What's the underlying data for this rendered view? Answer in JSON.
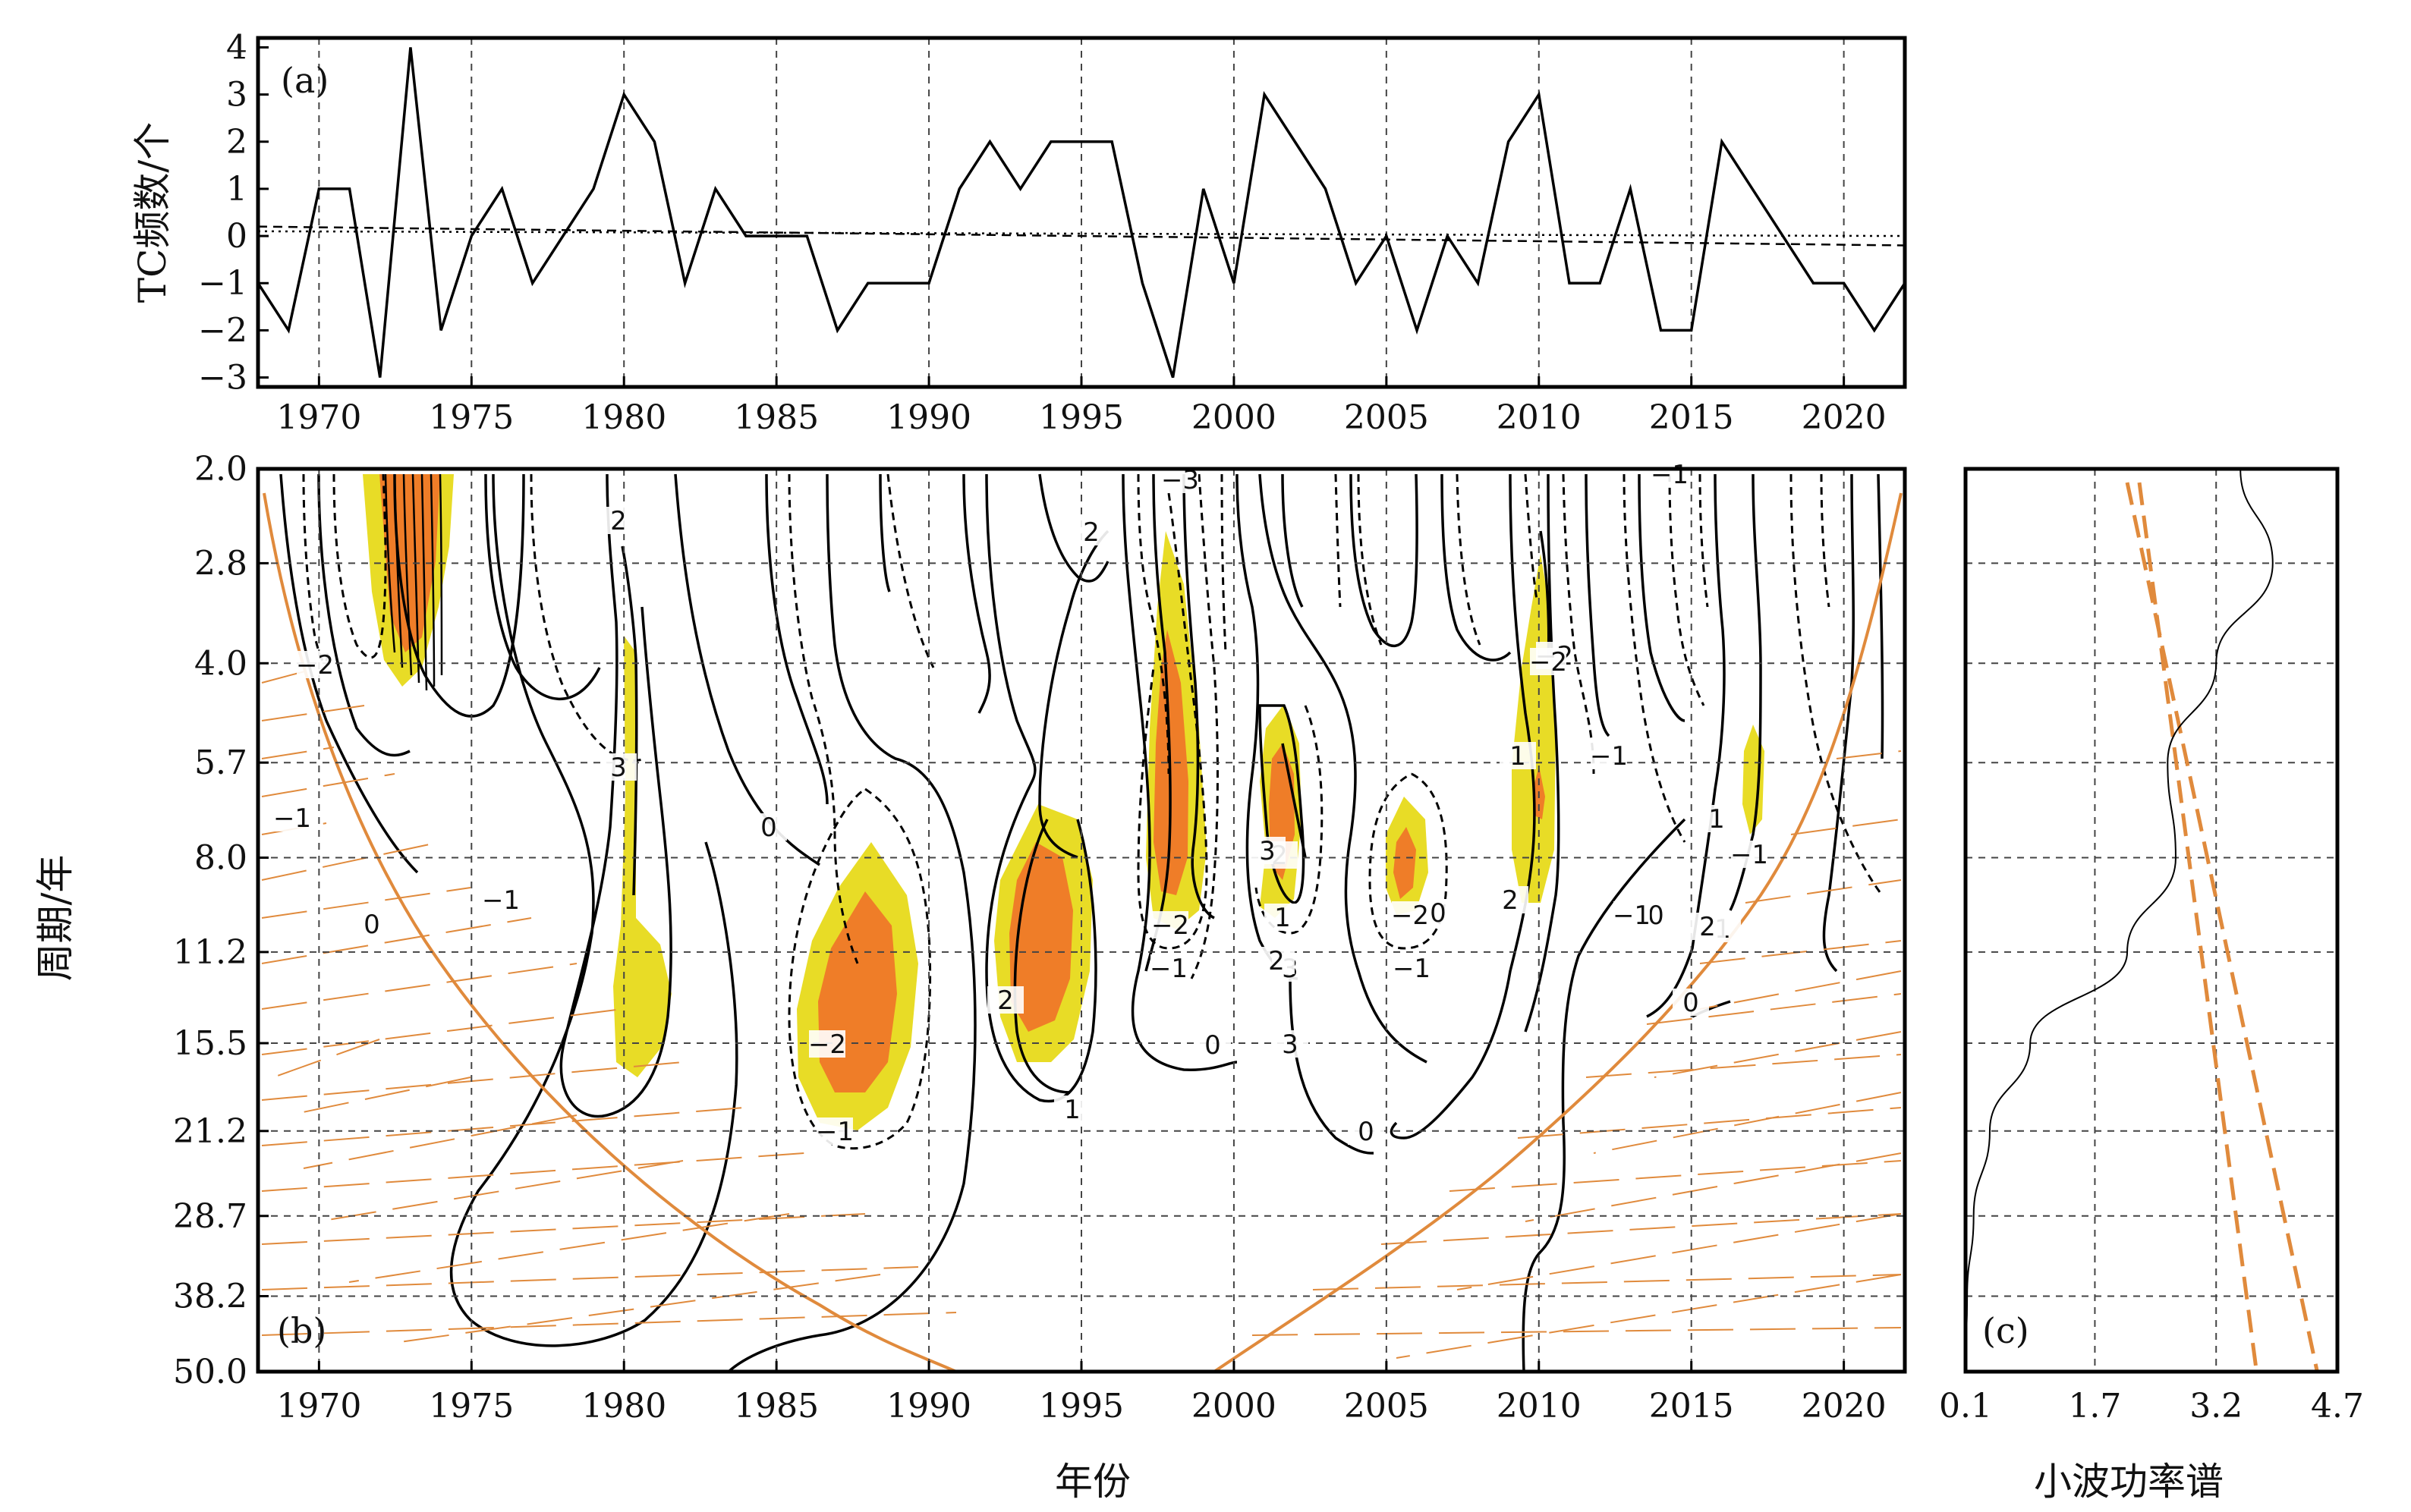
{
  "chart_data": [
    {
      "panel": "(a)",
      "type": "line",
      "ylabel": "TC频数/个",
      "xlim": [
        1968,
        2022
      ],
      "ylim": [
        -3.2,
        4.2
      ],
      "xticks": [
        "1970",
        "1975",
        "1980",
        "1985",
        "1990",
        "1995",
        "2000",
        "2005",
        "2010",
        "2015",
        "2020"
      ],
      "yticks": [
        "4",
        "3",
        "2",
        "1",
        "0",
        "−1",
        "−2",
        "−3"
      ],
      "x": [
        1968,
        1969,
        1970,
        1971,
        1972,
        1973,
        1974,
        1975,
        1976,
        1977,
        1978,
        1979,
        1980,
        1981,
        1982,
        1983,
        1984,
        1985,
        1986,
        1987,
        1988,
        1989,
        1990,
        1991,
        1992,
        1993,
        1994,
        1995,
        1996,
        1997,
        1998,
        1999,
        2000,
        2001,
        2002,
        2003,
        2004,
        2005,
        2006,
        2007,
        2008,
        2009,
        2010,
        2011,
        2012,
        2013,
        2014,
        2015,
        2016,
        2017,
        2018,
        2019,
        2020,
        2021,
        2022
      ],
      "values": [
        -1,
        -2,
        1,
        1,
        -3,
        4,
        -2,
        0,
        1,
        -1,
        0,
        1,
        3,
        2,
        -1,
        1,
        0,
        0,
        0,
        -2,
        -1,
        -1,
        -1,
        1,
        2,
        1,
        2,
        2,
        2,
        -1,
        -3,
        1,
        -1,
        3,
        2,
        1,
        -1,
        0,
        -2,
        0,
        -1,
        2,
        3,
        -1,
        -1,
        1,
        -2,
        -2,
        2,
        1,
        0,
        -1,
        -1,
        -2,
        -1
      ],
      "trend_lines": [
        {
          "style": "dashed",
          "start": 0.2,
          "end": -0.2
        },
        {
          "style": "dotted",
          "start": 0.1,
          "end": 0.0
        }
      ]
    },
    {
      "panel": "(b)",
      "type": "contour",
      "xlabel": "年份",
      "ylabel": "周期/年",
      "xlim": [
        1968,
        2022
      ],
      "yscale": "log",
      "ylim": [
        2.0,
        50.0
      ],
      "xticks": [
        "1970",
        "1975",
        "1980",
        "1985",
        "1990",
        "1995",
        "2000",
        "2005",
        "2010",
        "2015",
        "2020"
      ],
      "yticks": [
        "2.0",
        "2.8",
        "4.0",
        "5.7",
        "8.0",
        "11.2",
        "15.5",
        "21.2",
        "28.7",
        "38.2",
        "50.0"
      ],
      "contour_labels": [
        "−3",
        "2",
        "2",
        "−2",
        "−1",
        "3",
        "0",
        "−1",
        "−2",
        "0",
        "1",
        "0",
        "−1",
        "2",
        "0",
        "1",
        "2",
        "3",
        "−2",
        "−1",
        "3",
        "2",
        "1",
        "0",
        "−2",
        "−1",
        "0",
        "−2",
        "3",
        "2",
        "1",
        "−1",
        "−1",
        "1",
        "0",
        "2",
        "−1",
        "−2",
        "−1"
      ],
      "significance_colors": [
        "#e8dc26",
        "#ef7d28"
      ],
      "cone_color": "#e08a3c"
    },
    {
      "panel": "(c)",
      "type": "line",
      "xlabel": "小波功率谱",
      "xlim": [
        0.1,
        4.7
      ],
      "xticks": [
        "0.1",
        "1.7",
        "3.2",
        "4.7"
      ],
      "periods": [
        2.0,
        2.8,
        4.0,
        5.7,
        8.0,
        11.2,
        15.5,
        21.2,
        28.7,
        38.2,
        50.0
      ],
      "power": [
        3.5,
        3.9,
        3.2,
        2.6,
        2.7,
        2.1,
        0.9,
        0.4,
        0.2,
        0.12,
        0.1
      ],
      "significance": [
        {
          "style": "dashed",
          "period": [
            2.1,
            50.0
          ],
          "power": [
            2.1,
            4.45
          ]
        },
        {
          "style": "dashed",
          "period": [
            2.1,
            50.0
          ],
          "power": [
            2.25,
            3.7
          ]
        }
      ]
    }
  ]
}
